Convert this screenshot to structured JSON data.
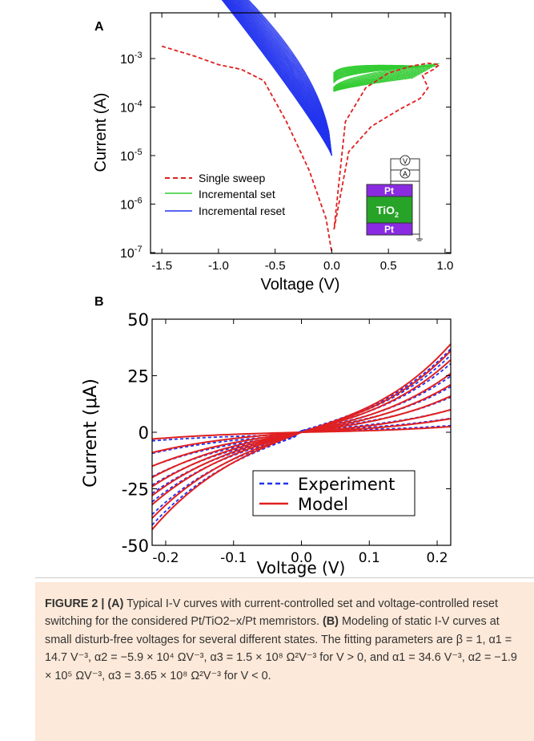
{
  "panel_a": {
    "label": "A",
    "ylabel": "Current (A)",
    "xlabel": "Voltage (V)",
    "y_ticks": [
      "10",
      "10",
      "10",
      "10",
      "10"
    ],
    "y_tick_exps": [
      "-3",
      "-4",
      "-5",
      "-6",
      "-7"
    ],
    "x_ticks": [
      "-1.5",
      "-1.0",
      "-0.5",
      "0.0",
      "0.5",
      "1.0"
    ],
    "legend": [
      "Single sweep",
      "Incremental set",
      "Incremental reset"
    ],
    "inset": {
      "top": "Pt",
      "middle": "TiO",
      "middle_sub": "2",
      "bottom": "Pt",
      "v": "V",
      "a": "A"
    }
  },
  "panel_b": {
    "label": "B",
    "ylabel": "Current (μA)",
    "xlabel": "Voltage (V)",
    "y_ticks": [
      "50",
      "25",
      "0",
      "-25",
      "-50"
    ],
    "x_ticks": [
      "-0.2",
      "-0.1",
      "0.0",
      "0.1",
      "0.2"
    ],
    "legend": [
      "Experiment",
      "Model"
    ]
  },
  "colors": {
    "red": "#e02020",
    "green": "#33cc33",
    "blue": "#2233ee",
    "purple": "#8a2be2",
    "tio2": "#27a327"
  },
  "caption": {
    "fig": "FIGURE 2 | ",
    "a": "(A)",
    "t1": " Typical I-V curves with current-controlled set and voltage-controlled reset switching for the considered Pt/TiO2−x/Pt memristors. ",
    "b": "(B)",
    "t2": " Modeling of static I-V curves at small disturb-free voltages for several different states. The fitting parameters are β = 1, α1 = 14.7 V⁻³, α2 = −5.9 × 10⁴ ΩV⁻³, α3 = 1.5 × 10⁸ Ω²V⁻³ for V > 0, and α1 = 34.6 V⁻³, α2 = −1.9 × 10⁵ ΩV⁻³, α3 = 3.65 × 10⁸ Ω²V⁻³ for V < 0."
  },
  "chart_data": [
    {
      "type": "line",
      "xlabel": "Voltage (V)",
      "ylabel": "Current (A)",
      "xlim": [
        -1.6,
        1.05
      ],
      "ylim": [
        1e-07,
        0.003
      ],
      "yscale": "log",
      "series": [
        {
          "name": "Single sweep",
          "style": "dashed",
          "color": "red",
          "x": [
            -1.5,
            -1.2,
            -1.0,
            -0.8,
            -0.6,
            -0.4,
            -0.2,
            -0.05,
            0.0
          ],
          "y": [
            0.0018,
            0.0011,
            0.00075,
            0.0006,
            0.00035,
            5e-05,
            5e-06,
            5e-07,
            1e-07
          ]
        },
        {
          "name": "Incremental set",
          "style": "solid",
          "color": "green"
        },
        {
          "name": "Incremental reset",
          "style": "solid",
          "color": "blue"
        }
      ]
    },
    {
      "type": "line",
      "xlabel": "Voltage (V)",
      "ylabel": "Current (μA)",
      "xlim": [
        -0.22,
        0.22
      ],
      "ylim": [
        -50,
        50
      ],
      "series": [
        {
          "name": "Experiment",
          "style": "dashed",
          "color": "blue"
        },
        {
          "name": "Model",
          "style": "solid",
          "color": "red",
          "pos_end": [
            2.5,
            6,
            10,
            16,
            21,
            26,
            32,
            36,
            39
          ],
          "neg_end": [
            -3,
            -9,
            -15,
            -20,
            -24,
            -28,
            -32,
            -38,
            -43
          ]
        }
      ]
    }
  ]
}
